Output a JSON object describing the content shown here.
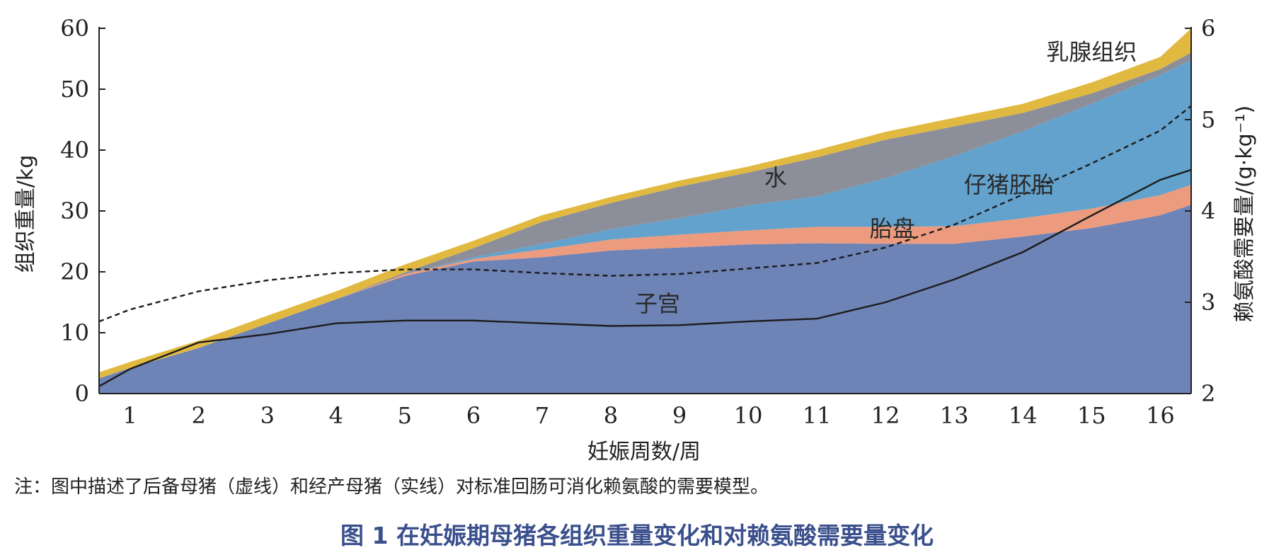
{
  "chart_data": {
    "type": "area",
    "xlabel": "妊娠周数/周",
    "ylabel": "组织重量/kg",
    "y2label": "赖氨酸需要量/(g·kg⁻¹)",
    "x_ticks": [
      "1",
      "2",
      "3",
      "4",
      "5",
      "6",
      "7",
      "8",
      "9",
      "10",
      "11",
      "12",
      "13",
      "14",
      "15",
      "16"
    ],
    "xlim": [
      0.55,
      16.45
    ],
    "ylim": [
      0,
      60
    ],
    "y_ticks": [
      0,
      10,
      20,
      30,
      40,
      50,
      60
    ],
    "y2lim": [
      2,
      6
    ],
    "y2_ticks": [
      2,
      3,
      4,
      5,
      6
    ],
    "x": [
      0.55,
      1,
      2,
      3,
      4,
      5,
      6,
      7,
      8,
      9,
      10,
      11,
      12,
      13,
      14,
      15,
      16,
      16.45
    ],
    "stack_series": [
      {
        "name": "子宫",
        "color": "#6e83b6",
        "values": [
          2.5,
          4.2,
          7.5,
          11.5,
          15.5,
          19.3,
          21.7,
          22.4,
          23.5,
          24.0,
          24.5,
          24.7,
          24.6,
          24.6,
          25.8,
          27.2,
          29.3,
          31.0
        ]
      },
      {
        "name": "胎盘",
        "color": "#ec9b7e",
        "values": [
          0,
          0,
          0,
          0,
          0,
          0.3,
          0.4,
          1.3,
          1.8,
          2.1,
          2.3,
          2.7,
          2.8,
          2.9,
          3.0,
          3.2,
          3.3,
          3.3
        ]
      },
      {
        "name": "仔猪胚胎",
        "color": "#62a2cc",
        "values": [
          0,
          0,
          0,
          0,
          0,
          0,
          0.3,
          0.9,
          1.7,
          2.7,
          4.1,
          5.0,
          8.0,
          11.5,
          14.3,
          17.2,
          19.7,
          20.5
        ]
      },
      {
        "name": "水",
        "color": "#8c8f99",
        "values": [
          0,
          0,
          0,
          0,
          0,
          0.3,
          1.5,
          3.6,
          4.3,
          5.2,
          5.4,
          6.4,
          6.3,
          4.9,
          3.0,
          1.7,
          1.0,
          1.2
        ]
      },
      {
        "name": "乳腺组织",
        "color": "#e1b940",
        "values": [
          1.0,
          1.0,
          1.2,
          1.3,
          1.3,
          1.3,
          1.2,
          1.1,
          1.0,
          1.0,
          1.0,
          1.2,
          1.3,
          1.4,
          1.5,
          1.8,
          2.0,
          4.0
        ]
      }
    ],
    "line_series": [
      {
        "name": "后备母猪（虚线）",
        "style": "dashed",
        "axis": "right",
        "values": [
          2.79,
          2.92,
          3.12,
          3.24,
          3.32,
          3.36,
          3.36,
          3.32,
          3.29,
          3.31,
          3.37,
          3.43,
          3.6,
          3.85,
          4.18,
          4.52,
          4.88,
          5.15
        ]
      },
      {
        "name": "经产母猪（实线）",
        "style": "solid",
        "axis": "right",
        "values": [
          2.08,
          2.27,
          2.56,
          2.65,
          2.77,
          2.8,
          2.8,
          2.77,
          2.74,
          2.75,
          2.79,
          2.82,
          3.0,
          3.25,
          3.55,
          3.95,
          4.34,
          4.45
        ]
      }
    ],
    "labels": [
      {
        "text": "子宫",
        "x": 8.68,
        "y": 13.5
      },
      {
        "text": "胎盘",
        "x": 12.1,
        "y": 25.8
      },
      {
        "text": "仔猪胚胎",
        "x": 13.8,
        "y": 33.0
      },
      {
        "text": "水",
        "x": 10.4,
        "y": 34.2
      },
      {
        "text": "乳腺组织",
        "x": 15.0,
        "y": 54.8
      }
    ]
  },
  "note": "注：图中描述了后备母猪（虚线）和经产母猪（实线）对标准回肠可消化赖氨酸的需要模型。",
  "caption": "图 1  在妊娠期母猪各组织重量变化和对赖氨酸需要量变化"
}
